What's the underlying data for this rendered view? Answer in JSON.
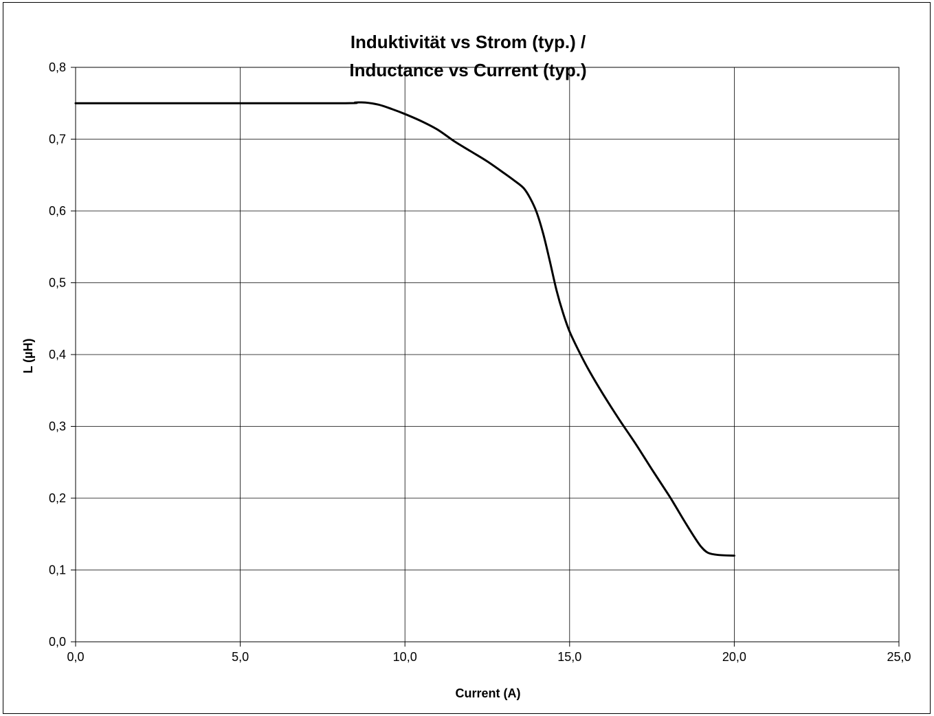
{
  "chart_data": {
    "type": "line",
    "title": [
      "Induktivität vs Strom (typ.) /",
      "Inductance vs Current (typ.)"
    ],
    "xlabel": "Current (A)",
    "ylabel": "L (µH)",
    "xlim": [
      0,
      25
    ],
    "ylim": [
      0,
      0.8
    ],
    "x_ticks": [
      "0,0",
      "5,0",
      "10,0",
      "15,0",
      "20,0",
      "25,0"
    ],
    "y_ticks": [
      "0,0",
      "0,1",
      "0,2",
      "0,3",
      "0,4",
      "0,5",
      "0,6",
      "0,7",
      "0,8"
    ],
    "grid": true,
    "legend": "none",
    "line_color": "#000000",
    "series": [
      {
        "x": [
          0,
          3,
          8,
          8.5,
          8.8,
          9.2,
          9.6,
          10,
          10.5,
          11,
          11.5,
          12,
          12.5,
          13,
          13.3,
          13.6,
          13.8,
          14,
          14.2,
          14.4,
          14.6,
          14.8,
          15,
          15.3,
          15.6,
          16,
          16.5,
          17,
          17.5,
          18,
          18.2,
          18.5,
          18.8,
          19,
          19.2,
          19.5,
          20
        ],
        "y": [
          0.75,
          0.75,
          0.75,
          0.751,
          0.751,
          0.748,
          0.742,
          0.735,
          0.725,
          0.713,
          0.697,
          0.683,
          0.669,
          0.653,
          0.643,
          0.632,
          0.618,
          0.598,
          0.568,
          0.53,
          0.49,
          0.458,
          0.432,
          0.403,
          0.377,
          0.346,
          0.31,
          0.276,
          0.24,
          0.205,
          0.19,
          0.167,
          0.145,
          0.132,
          0.124,
          0.121,
          0.12
        ]
      }
    ]
  }
}
